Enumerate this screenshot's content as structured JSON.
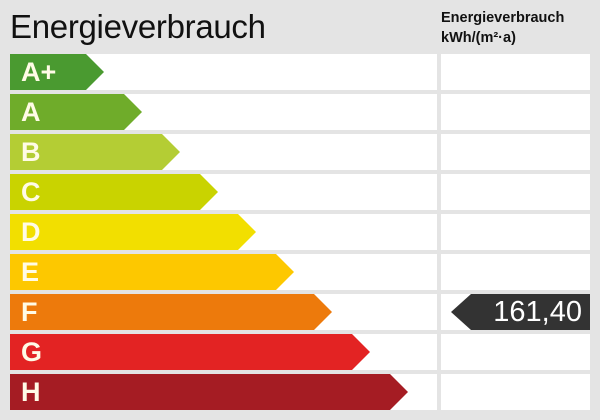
{
  "title": "Energieverbrauch",
  "column_header": {
    "line1": "Energieverbrauch",
    "line2": "kWh/(m²·a)"
  },
  "classes": [
    {
      "label": "A+",
      "color": "#4a9a30"
    },
    {
      "label": "A",
      "color": "#6fac2a"
    },
    {
      "label": "B",
      "color": "#b4cd34"
    },
    {
      "label": "C",
      "color": "#c9d300"
    },
    {
      "label": "D",
      "color": "#f2df00"
    },
    {
      "label": "E",
      "color": "#fdc800"
    },
    {
      "label": "F",
      "color": "#ed7a0c"
    },
    {
      "label": "G",
      "color": "#e32323"
    },
    {
      "label": "H",
      "color": "#a51c23"
    }
  ],
  "value": {
    "text": "161,40",
    "class": "F",
    "color": "#333333"
  }
}
